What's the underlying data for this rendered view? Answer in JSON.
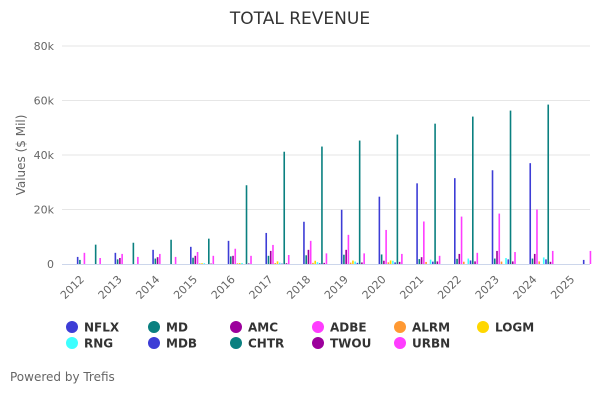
{
  "chart_data": {
    "type": "bar",
    "title": "TOTAL REVENUE",
    "xlabel": "",
    "ylabel": "Values ($ Mil)",
    "ylim": [
      0,
      80000
    ],
    "yticks": [
      0,
      20000,
      40000,
      60000,
      80000
    ],
    "ytick_labels": [
      "0",
      "20k",
      "40k",
      "60k",
      "80k"
    ],
    "grid": true,
    "legend_position": "bottom",
    "categories": [
      "2012",
      "2013",
      "2014",
      "2015",
      "2016",
      "2017",
      "2018",
      "2019",
      "2020",
      "2021",
      "2022",
      "2023",
      "2024",
      "2025"
    ],
    "series": [
      {
        "name": "NFLX",
        "color": "#3d3dd6",
        "values": [
          2600,
          4100,
          5200,
          6300,
          8500,
          11400,
          15500,
          19900,
          24700,
          29600,
          31500,
          34400,
          37000,
          null
        ]
      },
      {
        "name": "MD",
        "color": "#0a8080",
        "values": [
          1500,
          1700,
          2000,
          2300,
          2800,
          3000,
          3200,
          3400,
          3500,
          1800,
          1900,
          2000,
          2000,
          null
        ]
      },
      {
        "name": "AMC",
        "color": "#9c009c",
        "values": [
          null,
          2200,
          2500,
          3000,
          3000,
          4800,
          5200,
          5200,
          1200,
          2500,
          3700,
          4800,
          3700,
          null
        ]
      },
      {
        "name": "ADBE",
        "color": "#ff3dff",
        "values": [
          4100,
          3700,
          3700,
          4400,
          5600,
          7000,
          8500,
          10700,
          12500,
          15600,
          17400,
          18500,
          20000,
          null
        ]
      },
      {
        "name": "ALRM",
        "color": "#ff9933",
        "values": [
          null,
          null,
          null,
          200,
          250,
          340,
          420,
          500,
          620,
          750,
          840,
          880,
          940,
          null
        ]
      },
      {
        "name": "LOGM",
        "color": "#ffd700",
        "values": [
          null,
          null,
          null,
          300,
          340,
          990,
          1200,
          1260,
          1300,
          null,
          null,
          null,
          null,
          null
        ]
      },
      {
        "name": "RNG",
        "color": "#3dffff",
        "values": [
          null,
          null,
          null,
          300,
          380,
          500,
          670,
          900,
          1200,
          1600,
          2000,
          2200,
          2400,
          null
        ]
      },
      {
        "name": "MDB",
        "color": "#3d3dd6",
        "values": [
          null,
          null,
          null,
          null,
          null,
          150,
          270,
          420,
          590,
          870,
          1300,
          1700,
          1700,
          1500
        ]
      },
      {
        "name": "CHTR",
        "color": "#0a8080",
        "values": [
          7100,
          7800,
          8900,
          9300,
          28900,
          41200,
          43100,
          45300,
          47500,
          51500,
          54100,
          56300,
          58500,
          null
        ]
      },
      {
        "name": "TWOU",
        "color": "#9c009c",
        "values": [
          null,
          null,
          null,
          150,
          200,
          290,
          410,
          570,
          770,
          950,
          960,
          950,
          800,
          null
        ]
      },
      {
        "name": "URBN",
        "color": "#ff3dff",
        "values": [
          2200,
          2600,
          2600,
          3000,
          3000,
          3300,
          3900,
          3900,
          3700,
          3000,
          4100,
          4400,
          4800,
          4800
        ]
      }
    ]
  },
  "footer": {
    "credit": "Powered by Trefis"
  }
}
